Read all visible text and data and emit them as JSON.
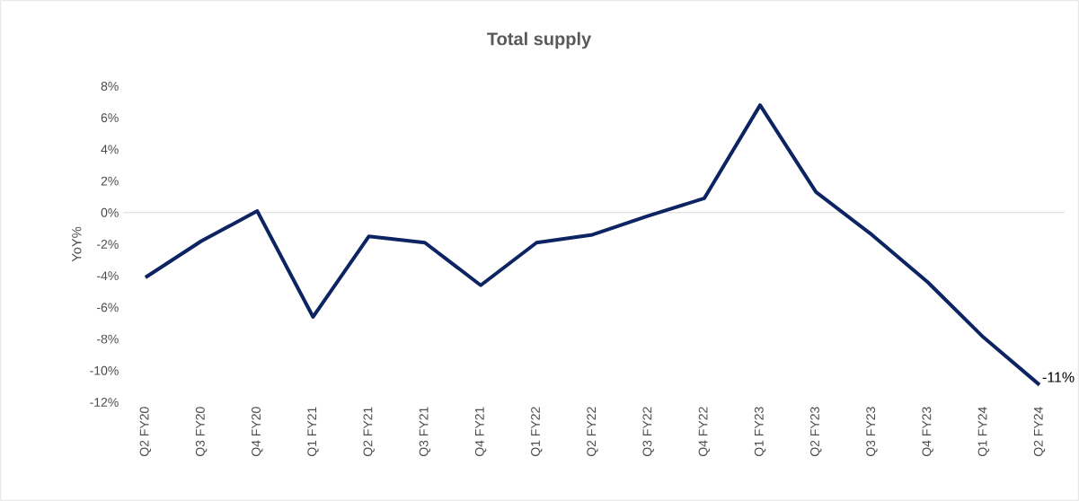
{
  "chart_data": {
    "type": "line",
    "title": "Total supply",
    "ylabel": "YoY%",
    "categories": [
      "Q2 FY20",
      "Q3 FY20",
      "Q4 FY20",
      "Q1 FY21",
      "Q2 FY21",
      "Q3 FY21",
      "Q4 FY21",
      "Q1 FY22",
      "Q2 FY22",
      "Q3 FY22",
      "Q4 FY22",
      "Q1 FY23",
      "Q2 FY23",
      "Q3 FY23",
      "Q4 FY23",
      "Q1 FY24",
      "Q2 FY24"
    ],
    "series": [
      {
        "color": "#0d2463",
        "values": [
          -4.1,
          -1.8,
          0.1,
          -6.6,
          -1.5,
          -1.9,
          -4.6,
          -1.9,
          -1.4,
          -0.2,
          0.9,
          6.8,
          1.3,
          -1.4,
          -4.4,
          -7.9,
          -10.9
        ],
        "value_labels": [
          null,
          null,
          null,
          null,
          null,
          null,
          null,
          null,
          null,
          null,
          null,
          null,
          null,
          null,
          null,
          null,
          "-11%"
        ]
      }
    ],
    "ylim": [
      -12,
      8
    ],
    "yticks": [
      {
        "value": -12,
        "label": "-12%"
      },
      {
        "value": -10,
        "label": "-10%"
      },
      {
        "value": -8,
        "label": "-8%"
      },
      {
        "value": -6,
        "label": "-6%"
      },
      {
        "value": -4,
        "label": "-4%"
      },
      {
        "value": -2,
        "label": "-2%"
      },
      {
        "value": 0,
        "label": "0%"
      },
      {
        "value": 2,
        "label": "2%"
      },
      {
        "value": 4,
        "label": "4%"
      },
      {
        "value": 6,
        "label": "6%"
      },
      {
        "value": 8,
        "label": "8%"
      }
    ],
    "ref_lines": [
      {
        "axis": "y",
        "value": 0,
        "color": "#d9d9d9"
      }
    ],
    "grid": false
  }
}
